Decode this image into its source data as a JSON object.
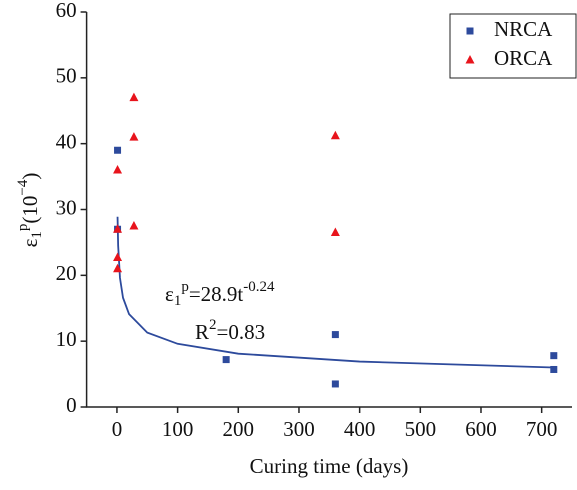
{
  "chart_data": {
    "type": "scatter",
    "xlabel": "Curing time (days)",
    "ylabel": {
      "base": "ε",
      "sub": "1",
      "sup": "p",
      "rest": "(10",
      "exp": "−4",
      "end": ")"
    },
    "xlim": [
      -50,
      750
    ],
    "xticks": [
      0,
      100,
      200,
      300,
      400,
      500,
      600,
      700
    ],
    "ylim": [
      0,
      60
    ],
    "yticks": [
      0,
      10,
      20,
      30,
      40,
      50,
      60
    ],
    "legend": "top-right",
    "series": [
      {
        "name": "NRCA",
        "color": "#2d4a9c",
        "marker": "square",
        "x": [
          1,
          1,
          180,
          360,
          360,
          720,
          720
        ],
        "values": [
          39,
          27,
          7.2,
          11,
          3.5,
          7.8,
          5.7
        ]
      },
      {
        "name": "ORCA",
        "color": "#e8141c",
        "marker": "triangle",
        "x": [
          1,
          1,
          1,
          1,
          28,
          28,
          28,
          360,
          360
        ],
        "values": [
          36,
          27,
          22.7,
          21,
          47,
          41,
          27.5,
          41.2,
          26.5
        ]
      }
    ],
    "curve": {
      "color": "#2d4a9c",
      "x": [
        1,
        2,
        5,
        10,
        20,
        50,
        100,
        200,
        400,
        720
      ],
      "values": [
        28.9,
        24.5,
        19.6,
        16.6,
        14.1,
        11.3,
        9.6,
        8.1,
        6.9,
        6.0
      ]
    },
    "annotations": {
      "equation": {
        "base": "ε",
        "sub": "1",
        "sup": "p",
        "rest": "=28.9t",
        "exp": "-0.24"
      },
      "r2": {
        "base": "R",
        "sup": "2",
        "rest": "=0.83"
      }
    }
  }
}
